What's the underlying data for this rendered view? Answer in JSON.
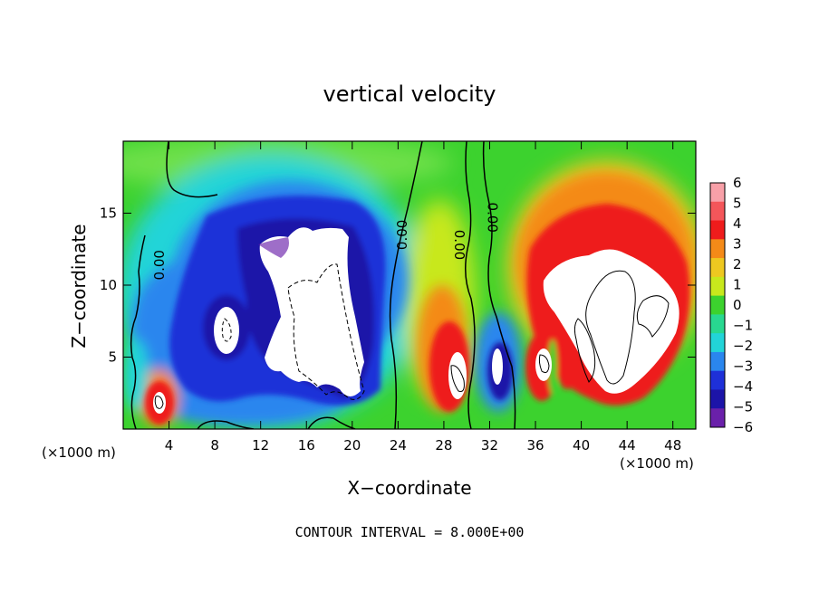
{
  "chart_data": {
    "type": "heatmap",
    "title": "vertical velocity",
    "xlabel": "X−coordinate",
    "ylabel": "Z−coordinate",
    "x_unit": "(×1000 m)",
    "footer": "CONTOUR INTERVAL = 8.000E+00",
    "xlim": [
      0,
      50
    ],
    "ylim": [
      0,
      20
    ],
    "x_ticks": [
      4,
      8,
      12,
      16,
      20,
      24,
      28,
      32,
      36,
      40,
      44,
      48
    ],
    "x_tick_labels": [
      "4",
      "8",
      "12",
      "16",
      "20",
      "24",
      "28",
      "32",
      "36",
      "40",
      "44",
      "48"
    ],
    "y_ticks": [
      5,
      10,
      15
    ],
    "y_tick_labels": [
      "5",
      "10",
      "15"
    ],
    "colorbar": {
      "ticks": [
        "6",
        "5",
        "4",
        "3",
        "2",
        "1",
        "0",
        "−1",
        "−2",
        "−3",
        "−4",
        "−5",
        "−6"
      ],
      "range": [
        -6,
        6
      ],
      "colors": [
        "#f8a0a8",
        "#f4565a",
        "#ee1c1c",
        "#f48a18",
        "#eec820",
        "#c8e81c",
        "#3cd22e",
        "#28d890",
        "#22d4d8",
        "#2a86ee",
        "#1e30d8",
        "#1c14a8",
        "#6a20aa"
      ],
      "saturation_color": "#ffffff"
    },
    "contour_labels": [
      {
        "text": "0.00",
        "x": 3.2,
        "y": 11.4,
        "rotation": -90
      },
      {
        "text": "0.00",
        "x": 24.4,
        "y": 13.5,
        "rotation": -90
      },
      {
        "text": "0.00",
        "x": 29.3,
        "y": 12.8,
        "rotation": 90
      },
      {
        "text": "0.00",
        "x": 32.2,
        "y": 14.7,
        "rotation": 90
      }
    ],
    "regions": [
      {
        "name": "updraft-core-left",
        "center": [
          3.0,
          2.1
        ],
        "peak": 6
      },
      {
        "name": "downdraft-main",
        "center": [
          17.0,
          9.0
        ],
        "peak": -6
      },
      {
        "name": "downdraft-secondary",
        "center": [
          9.2,
          7.3
        ],
        "peak": -6
      },
      {
        "name": "updraft-mid",
        "center": [
          27.8,
          5.0
        ],
        "peak": 6
      },
      {
        "name": "downdraft-narrow",
        "center": [
          32.0,
          4.6
        ],
        "peak": -6
      },
      {
        "name": "updraft-anvil",
        "center": [
          42.5,
          12.0
        ],
        "peak": 6
      }
    ]
  }
}
